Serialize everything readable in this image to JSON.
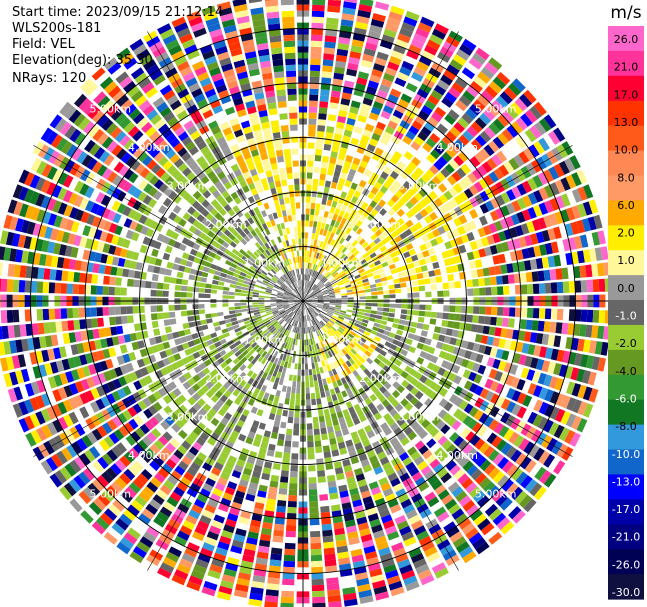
{
  "header": {
    "start_time": "Start time: 2023/09/15 21:12:14",
    "site": "WLS200s-181",
    "field": "Field: VEL",
    "elevation": "Elevation(deg): 35.30",
    "nrays": "NRays: 120"
  },
  "chart_data": {
    "type": "heatmap",
    "projection": "polar-ppi",
    "field": "VEL",
    "n_rays": 120,
    "range_rings_km": [
      1,
      2,
      3,
      4,
      5
    ],
    "ring_labels": [
      "1.00km",
      "2.00km",
      "3.00km",
      "4.00km",
      "5.00km"
    ],
    "max_range_km": 5.6,
    "cross_lines": true,
    "colorbar": {
      "unit": "m/s",
      "tick_labels": [
        "26.0",
        "21.0",
        "17.0",
        "13.0",
        "10.0",
        "8.0",
        "6.0",
        "2.0",
        "1.0",
        "0.0",
        "-1.0",
        "-2.0",
        "-4.0",
        "-6.0",
        "-8.0",
        "-10.0",
        "-13.0",
        "-17.0",
        "-21.0",
        "-26.0",
        "-30.0"
      ],
      "colors": [
        "#ff66cc",
        "#ff3399",
        "#ff0033",
        "#ff3300",
        "#ff5a1a",
        "#ff8855",
        "#ff9966",
        "#ffaa00",
        "#ffee00",
        "#fff799",
        "#999999",
        "#666666",
        "#99cc33",
        "#669922",
        "#339933",
        "#117722",
        "#3399dd",
        "#1166cc",
        "#0000ff",
        "#0000aa",
        "#000080",
        "#000055",
        "#101040"
      ]
    }
  }
}
